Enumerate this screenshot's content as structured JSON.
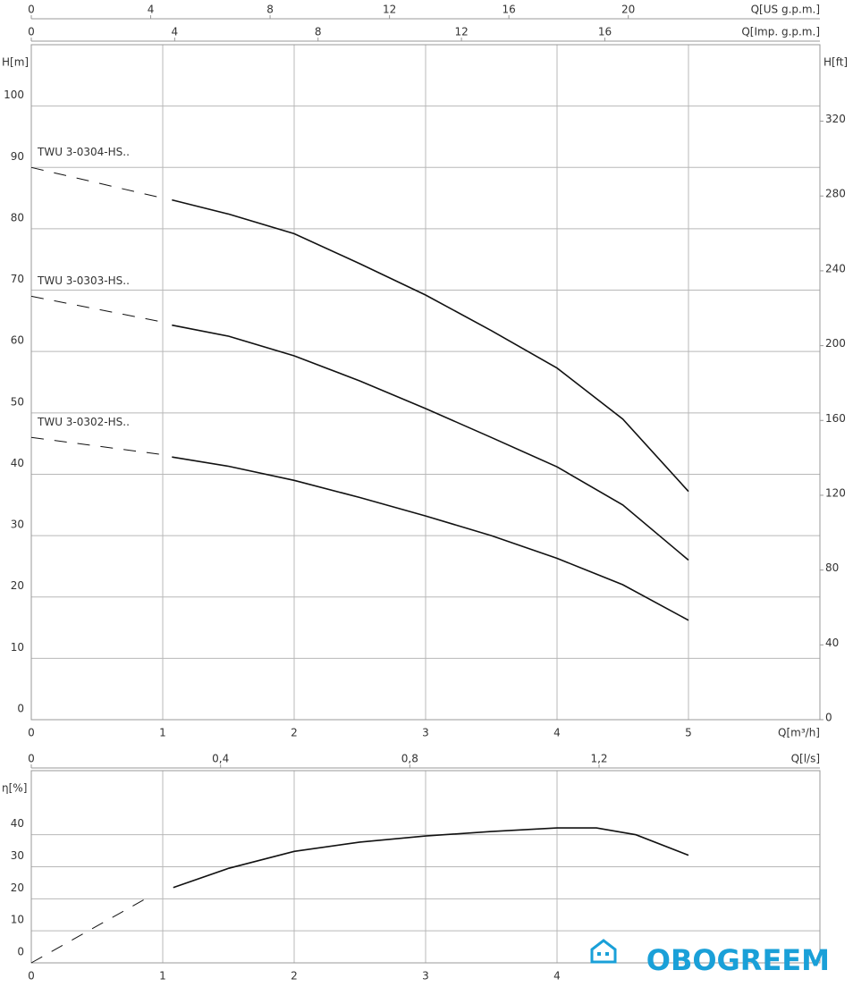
{
  "chart_data": [
    {
      "type": "line",
      "xlabel": "Q[m³/h]",
      "ylabel": "H[m]",
      "y2label": "H[ft]",
      "xlim": [
        0,
        6
      ],
      "xticks": [
        0,
        1,
        2,
        3,
        4,
        5
      ],
      "ylim": [
        0,
        110
      ],
      "yticks": [
        0,
        10,
        20,
        30,
        40,
        50,
        60,
        70,
        80,
        90,
        100
      ],
      "y2lim": [
        0,
        360.9
      ],
      "y2ticks": [
        0,
        40,
        80,
        120,
        160,
        200,
        240,
        280,
        320
      ],
      "top_axes": [
        {
          "label": "Q[US g.p.m.]",
          "lim": [
            0,
            26.42
          ],
          "ticks": [
            0,
            4,
            8,
            12,
            16,
            20
          ]
        },
        {
          "label": "Q[Imp. g.p.m.]",
          "lim": [
            0,
            22
          ],
          "ticks": [
            0,
            4,
            8,
            12,
            16
          ]
        }
      ],
      "grid": true,
      "color": "#111111",
      "series": [
        {
          "name": "TWU 3-0304-HS..",
          "x": [
            1.07,
            1.5,
            2,
            2.5,
            3,
            3.5,
            4,
            4.5,
            5
          ],
          "values": [
            84.7,
            82.4,
            79.2,
            74.3,
            69.2,
            63.4,
            57.3,
            49,
            37.2
          ],
          "dashed_x": [
            0,
            1
          ],
          "dashed_values": [
            90,
            85
          ]
        },
        {
          "name": "TWU 3-0303-HS..",
          "x": [
            1.07,
            1.5,
            2,
            2.5,
            3,
            3.5,
            4,
            4.5,
            5
          ],
          "values": [
            64.3,
            62.5,
            59.3,
            55.2,
            50.7,
            46,
            41.2,
            35,
            26
          ],
          "dashed_x": [
            0,
            1
          ],
          "dashed_values": [
            69,
            64.8
          ]
        },
        {
          "name": "TWU 3-0302-HS..",
          "x": [
            1.07,
            1.5,
            2,
            2.5,
            3,
            3.5,
            4,
            4.5,
            5
          ],
          "values": [
            42.8,
            41.3,
            39,
            36.2,
            33.2,
            30,
            26.3,
            22,
            16.2
          ],
          "dashed_x": [
            0,
            1
          ],
          "dashed_values": [
            46,
            43.2
          ]
        }
      ]
    },
    {
      "type": "line",
      "ylabel": "η[%]",
      "xlim": [
        0,
        6
      ],
      "xticks": [
        0,
        1,
        2,
        3,
        4
      ],
      "ylim": [
        0,
        60
      ],
      "yticks": [
        0,
        10,
        20,
        30,
        40
      ],
      "top_axes": [
        {
          "label": "Q[l/s]",
          "lim": [
            0,
            1.6667
          ],
          "ticks": [
            0,
            {
              "value": 0.4,
              "label": "0,4"
            },
            {
              "value": 0.8,
              "label": "0,8"
            },
            {
              "value": 1.2,
              "label": "1,2"
            }
          ]
        }
      ],
      "grid": true,
      "color": "#111111",
      "series": [
        {
          "x": [
            1.08,
            1.5,
            2,
            2.5,
            3,
            3.5,
            4,
            4.3,
            4.6,
            5
          ],
          "values": [
            23.5,
            29.5,
            34.8,
            37.7,
            39.6,
            41,
            42.1,
            42.1,
            40,
            33.6
          ],
          "dashed_x": [
            0,
            0.9
          ],
          "dashed_values": [
            0,
            20.7
          ]
        }
      ]
    }
  ],
  "watermark": "OBOGREEM"
}
